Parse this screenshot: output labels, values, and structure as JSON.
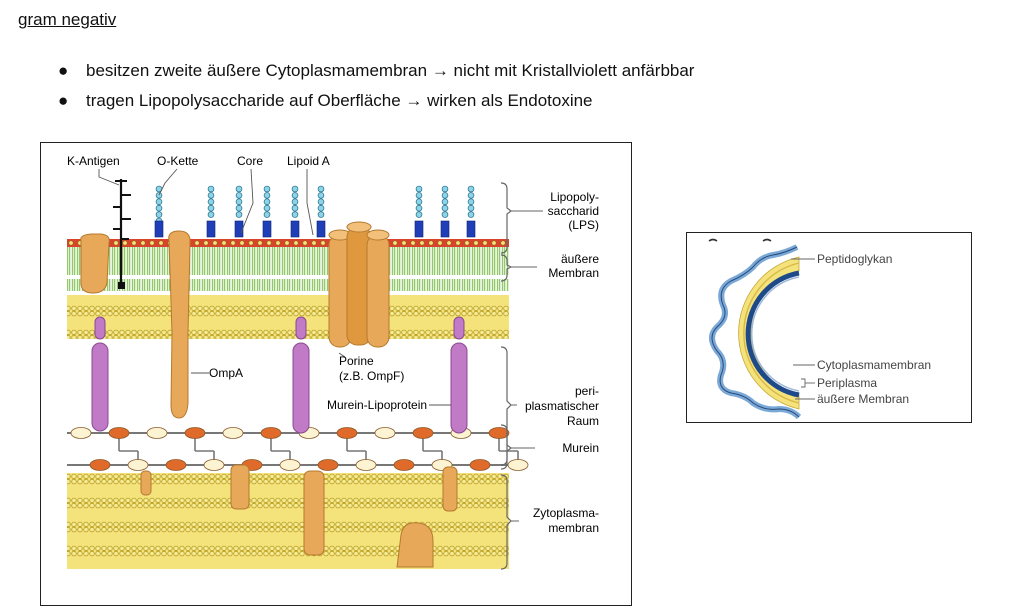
{
  "heading": "gram negativ",
  "bullets": [
    {
      "text": "besitzen zweite äußere Cytoplasmamembran → nicht mit Kristallviolett anfärbbar"
    },
    {
      "text": "tragen Lipopolysaccharide auf Oberfläche → wirken als Endotoxine"
    }
  ],
  "figure1": {
    "top_labels": {
      "k_antigen": "K-Antigen",
      "o_kette": "O-Kette",
      "core": "Core",
      "lipoid_a": "Lipoid A"
    },
    "inner_labels": {
      "ompa": "OmpA",
      "porine_1": "Porine",
      "porine_2": "(z.B. OmpF)",
      "murein_lipoprotein": "Murein-Lipoprotein"
    },
    "right_labels": {
      "lps_1": "Lipopoly-",
      "lps_2": "saccharid",
      "lps_3": "(LPS)",
      "aeussere_1": "äußere",
      "aeussere_2": "Membran",
      "peri_1": "peri-",
      "peri_2": "plasmatischer",
      "peri_3": "Raum",
      "murein": "Murein",
      "zyto_1": "Zytoplasma-",
      "zyto_2": "membran"
    }
  },
  "figure2": {
    "labels": {
      "peptidoglykan": "Peptidoglykan",
      "cytoplasmamembran": "Cytoplasmamembran",
      "periplasma": "Periplasma",
      "aeussere_membran": "äußere Membran"
    }
  },
  "colors": {
    "lipid_yellow": "#f4e27a",
    "membrane_green": "#93c96a",
    "protein_orange": "#e8a85a",
    "lipoprotein_purple": "#c07ac6",
    "murein_red": "#e06a2a",
    "sugar_blue": "#1e3fb8",
    "chain_cyan": "#8fd3e6",
    "lps_red": "#d9432c",
    "membrane_blue": "#1e4a8a",
    "wavy_blue": "#7aa9d8"
  }
}
